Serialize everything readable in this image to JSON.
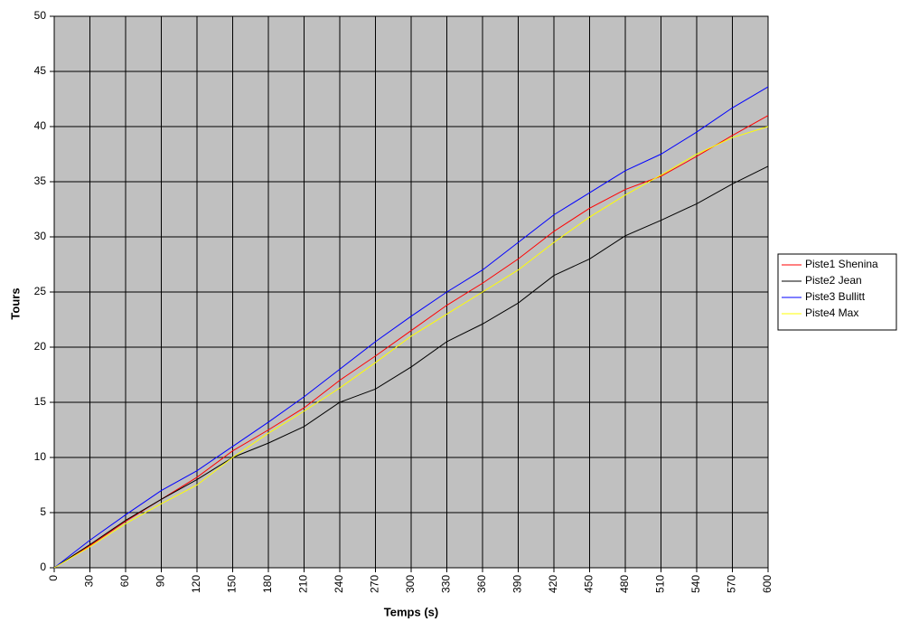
{
  "chart_data": {
    "type": "line",
    "x_label": "Temps (s)",
    "y_label": "Tours",
    "x": [
      0,
      30,
      60,
      90,
      120,
      150,
      180,
      210,
      240,
      270,
      300,
      330,
      360,
      390,
      420,
      450,
      480,
      510,
      540,
      570,
      600
    ],
    "series": [
      {
        "name": "Piste1 Shenina",
        "color": "#ff0000",
        "values": [
          0,
          2,
          4.2,
          6.2,
          8.2,
          10.6,
          12.5,
          14.5,
          17,
          19.2,
          21.5,
          23.8,
          25.8,
          28,
          30.5,
          32.6,
          34.3,
          35.5,
          37.3,
          39.2,
          41
        ]
      },
      {
        "name": "Piste2 Jean",
        "color": "#000000",
        "values": [
          0,
          2.1,
          4.3,
          6.2,
          8,
          10,
          11.3,
          12.8,
          15,
          16.2,
          18.2,
          20.5,
          22.1,
          24,
          26.5,
          28,
          30.1,
          31.5,
          33,
          34.8,
          36.4
        ]
      },
      {
        "name": "Piste3 Bullitt",
        "color": "#0000ff",
        "values": [
          0,
          2.5,
          4.8,
          7,
          8.8,
          11,
          13.2,
          15.5,
          18,
          20.5,
          22.8,
          25,
          27,
          29.5,
          32,
          34,
          36,
          37.5,
          39.5,
          41.7,
          43.6
        ]
      },
      {
        "name": "Piste4 Max",
        "color": "#ffff00",
        "values": [
          0,
          1.9,
          4,
          5.8,
          7.5,
          10,
          12.2,
          14.2,
          16.3,
          18.6,
          21,
          23,
          25,
          27,
          29.5,
          31.8,
          33.8,
          35.6,
          37.5,
          39,
          40
        ]
      }
    ],
    "xlim": [
      0,
      600
    ],
    "xticks": [
      0,
      30,
      60,
      90,
      120,
      150,
      180,
      210,
      240,
      270,
      300,
      330,
      360,
      390,
      420,
      450,
      480,
      510,
      540,
      570,
      600
    ],
    "ylim": [
      0,
      50
    ],
    "yticks": [
      0,
      5,
      10,
      15,
      20,
      25,
      30,
      35,
      40,
      45,
      50
    ],
    "grid": true,
    "plot_background": "#c0c0c0",
    "legend": "right"
  }
}
